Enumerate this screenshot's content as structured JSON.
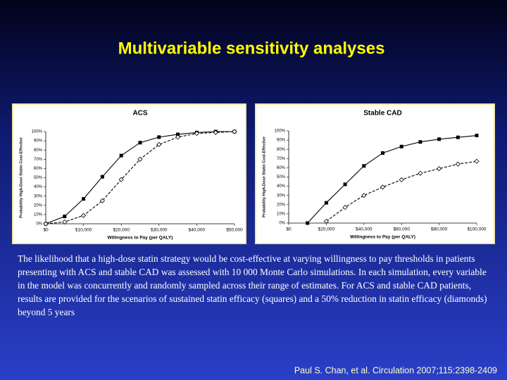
{
  "slide": {
    "title": "Multivariable sensitivity analyses",
    "caption": "The likelihood that a high-dose statin strategy would be cost-effective at varying willingness to pay thresholds in patients presenting with ACS and stable CAD was assessed with 10 000 Monte Carlo simulations. In each simulation, every variable in the model was concurrently and randomly sampled across their range of estimates. For ACS and stable CAD patients, results are provided for the scenarios of sustained statin efficacy (squares) and a 50% reduction in statin efficacy (diamonds) beyond 5 years",
    "citation": "Paul S. Chan, et al. Circulation 2007;115:2398-2409"
  },
  "chart_data": [
    {
      "type": "line",
      "title": "ACS",
      "xlabel": "Willingness to Pay (per QALY)",
      "ylabel": "Probability High-Dose Statin Cost-Effective",
      "x": [
        0,
        5000,
        10000,
        15000,
        20000,
        25000,
        30000,
        35000,
        40000,
        45000,
        50000
      ],
      "series": [
        {
          "color": "#000000",
          "marker": "square",
          "dashed": false,
          "values": [
            0,
            8,
            27,
            51,
            74,
            88,
            94,
            97,
            99,
            100,
            100
          ]
        },
        {
          "color": "#000000",
          "marker": "diamond",
          "dashed": true,
          "values": [
            0,
            2,
            9,
            25,
            48,
            70,
            86,
            94,
            98,
            99,
            100
          ]
        }
      ],
      "xlim": [
        0,
        50000
      ],
      "xticks": [
        {
          "value": 0,
          "label": "$0"
        },
        {
          "value": 10000,
          "label": "$10,000"
        },
        {
          "value": 20000,
          "label": "$20,000"
        },
        {
          "value": 30000,
          "label": "$30,000"
        },
        {
          "value": 40000,
          "label": "$40,000"
        },
        {
          "value": 50000,
          "label": "$50,000"
        }
      ],
      "ylim": [
        0,
        100
      ],
      "yticks": [
        {
          "value": 0,
          "label": "0%"
        },
        {
          "value": 10,
          "label": "10%"
        },
        {
          "value": 20,
          "label": "20%"
        },
        {
          "value": 30,
          "label": "30%"
        },
        {
          "value": 40,
          "label": "40%"
        },
        {
          "value": 50,
          "label": "50%"
        },
        {
          "value": 60,
          "label": "60%"
        },
        {
          "value": 70,
          "label": "70%"
        },
        {
          "value": 80,
          "label": "80%"
        },
        {
          "value": 90,
          "label": "90%"
        },
        {
          "value": 100,
          "label": "100%"
        }
      ],
      "grid": false
    },
    {
      "type": "line",
      "title": "Stable CAD",
      "xlabel": "Willingness to Pay (per QALY)",
      "ylabel": "Probability High-Dose Statin Cost-Effective",
      "series": [
        {
          "color": "#000000",
          "marker": "square",
          "dashed": false,
          "x": [
            10000,
            20000,
            30000,
            40000,
            50000,
            60000,
            70000,
            80000,
            90000,
            100000
          ],
          "values": [
            0,
            22,
            42,
            62,
            76,
            83,
            88,
            91,
            93,
            95
          ]
        },
        {
          "color": "#000000",
          "marker": "diamond",
          "dashed": true,
          "x": [
            20000,
            30000,
            40000,
            50000,
            60000,
            70000,
            80000,
            90000,
            100000
          ],
          "values": [
            2,
            17,
            30,
            39,
            47,
            54,
            59,
            64,
            67
          ]
        }
      ],
      "xlim": [
        0,
        100000
      ],
      "xticks": [
        {
          "value": 0,
          "label": "$0"
        },
        {
          "value": 20000,
          "label": "$20,000"
        },
        {
          "value": 40000,
          "label": "$40,000"
        },
        {
          "value": 60000,
          "label": "$60,000"
        },
        {
          "value": 80000,
          "label": "$80,000"
        },
        {
          "value": 100000,
          "label": "$100,000"
        }
      ],
      "ylim": [
        0,
        100
      ],
      "yticks": [
        {
          "value": 0,
          "label": "0%"
        },
        {
          "value": 10,
          "label": "10%"
        },
        {
          "value": 20,
          "label": "20%"
        },
        {
          "value": 30,
          "label": "30%"
        },
        {
          "value": 40,
          "label": "40%"
        },
        {
          "value": 50,
          "label": "50%"
        },
        {
          "value": 60,
          "label": "60%"
        },
        {
          "value": 70,
          "label": "70%"
        },
        {
          "value": 80,
          "label": "80%"
        },
        {
          "value": 90,
          "label": "90%"
        },
        {
          "value": 100,
          "label": "100%"
        }
      ],
      "grid": false
    }
  ]
}
